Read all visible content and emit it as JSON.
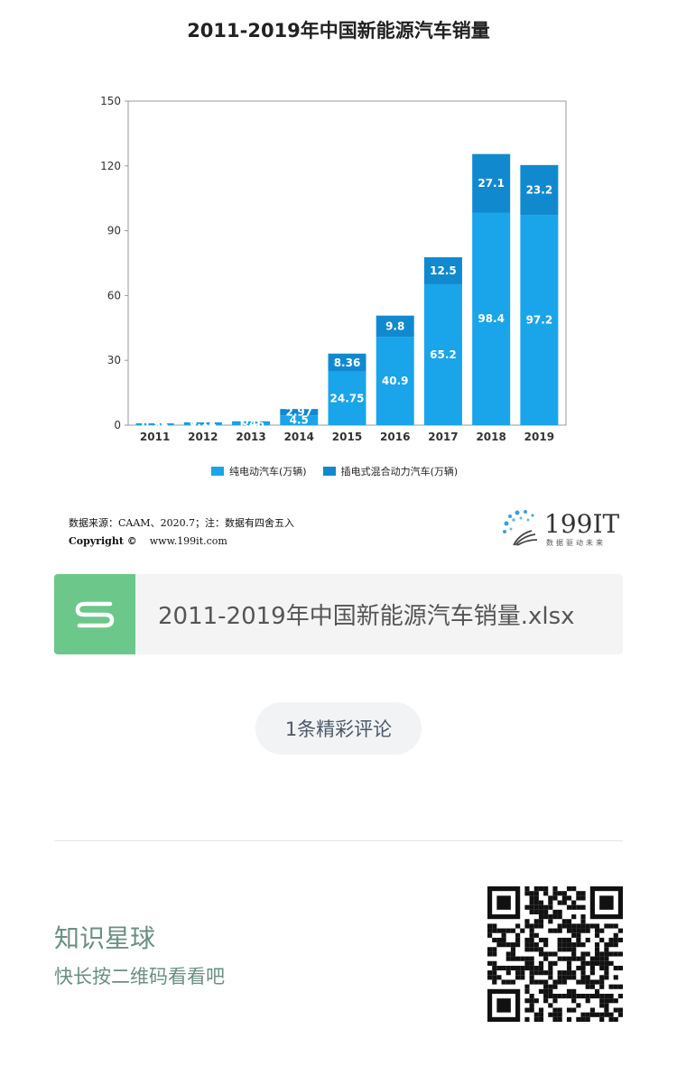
{
  "chart_data": {
    "type": "bar",
    "stacked": true,
    "title": "2011-2019年中国新能源汽车销量",
    "categories": [
      "2011",
      "2012",
      "2013",
      "2014",
      "2015",
      "2016",
      "2017",
      "2018",
      "2019"
    ],
    "series": [
      {
        "name": "纯电动汽车(万辆)",
        "values": [
          0.56,
          1.14,
          1.46,
          4.5,
          24.75,
          40.9,
          65.2,
          98.4,
          97.2
        ],
        "labels": [
          "0.56",
          "1.14",
          "1.46",
          "4.5",
          "24.75",
          "40.9",
          "65.2",
          "98.4",
          "97.2"
        ],
        "color": "#1aa4ea"
      },
      {
        "name": "插电式混合动力汽车(万辆)",
        "values": [
          0.27,
          0.12,
          0.3,
          2.97,
          8.36,
          9.8,
          12.5,
          27.1,
          23.2
        ],
        "labels": [
          "0.27",
          "0.12",
          "0.3",
          "2.97",
          "8.36",
          "9.8",
          "12.5",
          "27.1",
          "23.2"
        ],
        "color": "#1189cf"
      }
    ],
    "ylim": [
      0,
      150
    ],
    "yticks": [
      0,
      30,
      60,
      90,
      120,
      150
    ],
    "legend_position": "bottom",
    "grid": false
  },
  "source": {
    "line1": "数据来源：CAAM、2020.7；注：数据有四舍五入",
    "copyright_label": "Copyright ©",
    "copyright_url": "www.199it.com"
  },
  "logo": {
    "text": "199IT",
    "tagline": "数据驱动未来"
  },
  "file_card": {
    "icon": "s-document-icon",
    "filename": "2011-2019年中国新能源汽车销量.xlsx"
  },
  "comments": {
    "label": "1条精彩评论"
  },
  "knowledge_planet": {
    "title": "知识星球",
    "subtitle": "快长按二维码看看吧"
  },
  "colors": {
    "bev": "#1aa4ea",
    "phev": "#1189cf",
    "file_icon_bg": "#6cc78b",
    "planet_text": "#6b8f80"
  }
}
